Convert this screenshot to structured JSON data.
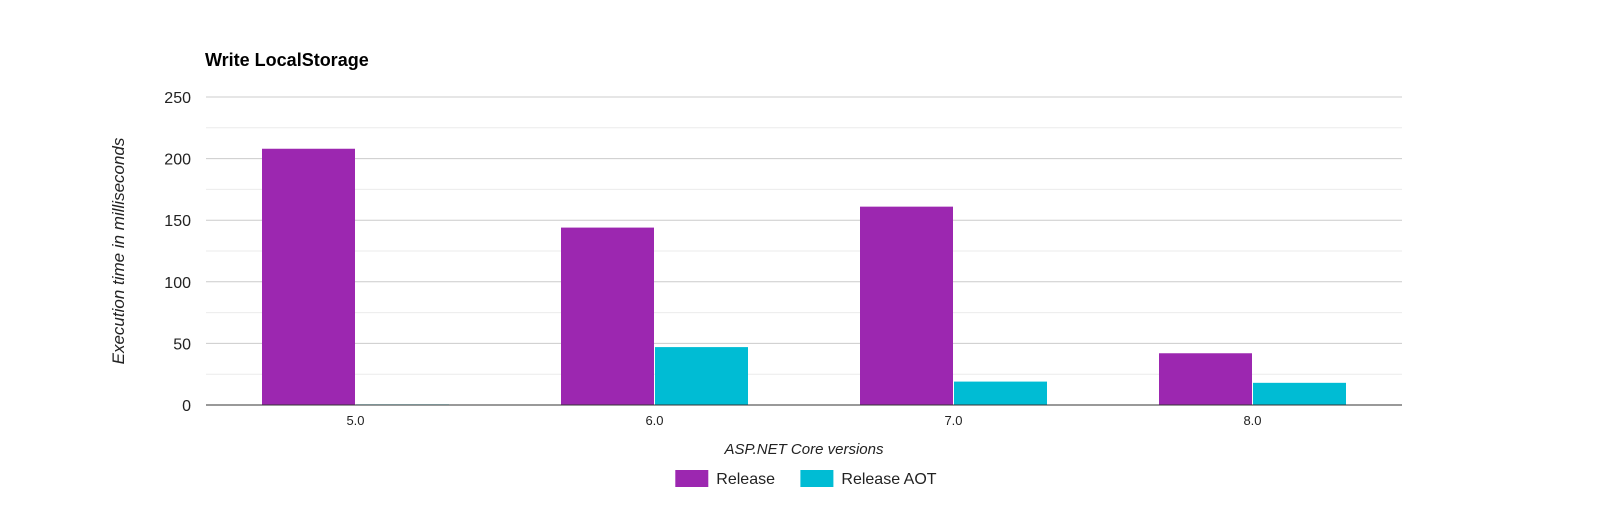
{
  "chart_data": {
    "type": "bar",
    "title": "Write LocalStorage",
    "xlabel": "ASP.NET Core versions",
    "ylabel": "Execution time in milliseconds",
    "categories": [
      "5.0",
      "6.0",
      "7.0",
      "8.0"
    ],
    "series": [
      {
        "name": "Release",
        "color": "#9c27b0",
        "values": [
          208,
          144,
          161,
          42
        ]
      },
      {
        "name": "Release AOT",
        "color": "#00bcd4",
        "values": [
          0.5,
          47,
          19,
          18
        ]
      }
    ],
    "ylim": [
      0,
      250
    ],
    "yticks": [
      "0",
      "50",
      "100",
      "150",
      "200",
      "250"
    ],
    "grid": true,
    "minor_grid": true,
    "legend": "bottom"
  }
}
